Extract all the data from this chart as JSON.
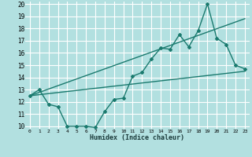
{
  "xlabel": "Humidex (Indice chaleur)",
  "background_color": "#b2e0e0",
  "grid_color": "#ffffff",
  "line_color": "#1a7a6e",
  "xlim": [
    -0.5,
    23.5
  ],
  "ylim": [
    9.8,
    20.2
  ],
  "xticks": [
    0,
    1,
    2,
    3,
    4,
    5,
    6,
    7,
    8,
    9,
    10,
    11,
    12,
    13,
    14,
    15,
    16,
    17,
    18,
    19,
    20,
    21,
    22,
    23
  ],
  "yticks": [
    10,
    11,
    12,
    13,
    14,
    15,
    16,
    17,
    18,
    19,
    20
  ],
  "line1_x": [
    0,
    1,
    2,
    3,
    4,
    5,
    6,
    7,
    8,
    9,
    10,
    11,
    12,
    13,
    14,
    15,
    16,
    17,
    18,
    19,
    20,
    21,
    22,
    23
  ],
  "line1_y": [
    12.5,
    13.0,
    11.8,
    11.6,
    10.0,
    10.0,
    10.0,
    9.9,
    11.2,
    12.2,
    12.3,
    14.1,
    14.4,
    15.5,
    16.4,
    16.3,
    17.5,
    16.5,
    17.8,
    20.0,
    17.2,
    16.7,
    15.0,
    14.7
  ],
  "line2_x": [
    0,
    23
  ],
  "line2_y": [
    12.5,
    14.5
  ],
  "line3_x": [
    0,
    23
  ],
  "line3_y": [
    12.5,
    18.8
  ]
}
